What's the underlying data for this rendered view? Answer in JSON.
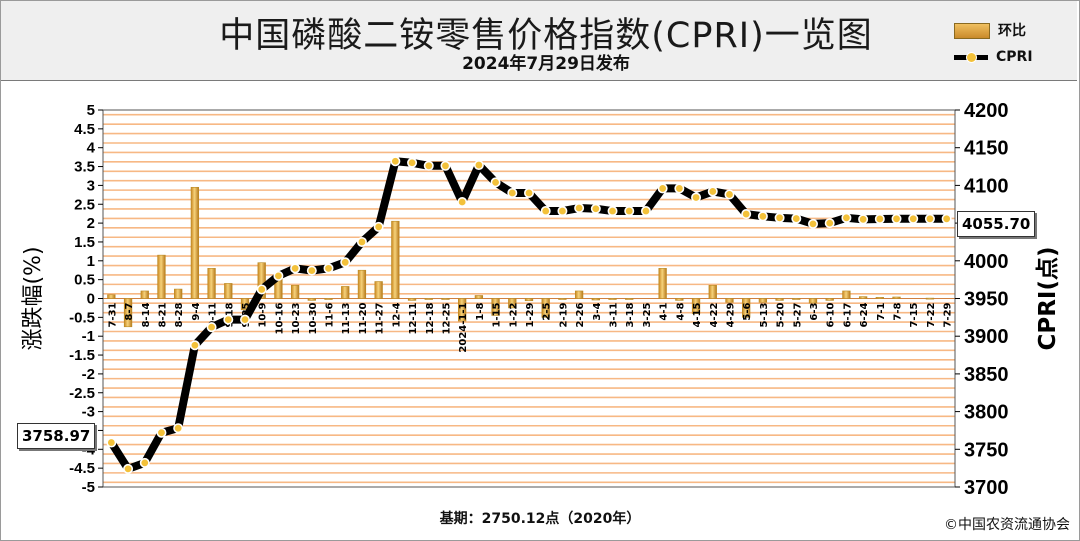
{
  "title": "中国磷酸二铵零售价格指数(CPRI)一览图",
  "subtitle": "2024年7月29日发布",
  "legend": [
    {
      "label": "环比",
      "icon": "bar-swatch-icon"
    },
    {
      "label": "CPRI",
      "icon": "line-marker-icon"
    }
  ],
  "footer": {
    "base": "基期：2750.12点（2020年）",
    "copyright": "©中国农资流通协会"
  },
  "colors": {
    "header_bg": "#efefef",
    "stripe": "#f7b884",
    "bar": "#d9a441",
    "bar_edge": "#b98a25",
    "line": "#000000",
    "marker": "#f3c13a"
  },
  "chart_data": {
    "type": "bar",
    "title": "中国磷酸二铵零售价格指数(CPRI)一览图",
    "subtitle": "2024年7月29日发布",
    "ylabel_left": "涨跌幅(%)",
    "ylabel_right": "CPRI(点)",
    "ylim_left": [
      -5,
      5
    ],
    "ylim_right": [
      3700,
      4200
    ],
    "yticks_left": [
      "5",
      "4.5",
      "4",
      "3.5",
      "3",
      "2.5",
      "2",
      "1.5",
      "1",
      "0.5",
      "0",
      "-0.5",
      "-1",
      "-1.5",
      "-2",
      "-2.5",
      "-3",
      "-3.5",
      "-4",
      "-4.5",
      "-5"
    ],
    "yticks_right": [
      "4200",
      "4150",
      "4100",
      "4050",
      "4000",
      "3950",
      "3900",
      "3850",
      "3800",
      "3750",
      "3700"
    ],
    "grid": true,
    "legend_position": "top-right",
    "categories": [
      "7-31",
      "8-7",
      "8-14",
      "8-21",
      "8-28",
      "9-4",
      "9-11",
      "9-18",
      "9-25",
      "10-9",
      "10-16",
      "10-23",
      "10-30",
      "11-6",
      "11-13",
      "11-20",
      "11-27",
      "12-4",
      "12-11",
      "12-18",
      "12-25",
      "2024-1-1",
      "1-8",
      "1-15",
      "1-22",
      "1-29",
      "2-5",
      "2-19",
      "2-26",
      "3-4",
      "3-11",
      "3-18",
      "3-25",
      "4-1",
      "4-8",
      "4-15",
      "4-22",
      "4-29",
      "5-6",
      "5-13",
      "5-20",
      "5-27",
      "6-3",
      "6-10",
      "6-17",
      "6-24",
      "7-1",
      "7-8",
      "7-15",
      "7-22",
      "7-29"
    ],
    "series": [
      {
        "name": "环比",
        "type": "bar",
        "axis": "left",
        "values": [
          0.1,
          -0.75,
          0.2,
          1.15,
          0.25,
          2.95,
          0.8,
          0.4,
          -0.3,
          0.95,
          0.6,
          0.35,
          -0.05,
          -0.02,
          0.32,
          0.75,
          0.45,
          2.05,
          -0.05,
          -0.02,
          -0.01,
          -0.6,
          0.08,
          -0.45,
          -0.25,
          -0.06,
          -0.5,
          -0.02,
          0.2,
          -0.04,
          -0.01,
          -0.02,
          0.0,
          0.8,
          -0.05,
          -0.4,
          0.35,
          -0.1,
          -0.5,
          -0.1,
          -0.05,
          -0.02,
          -0.12,
          -0.05,
          0.2,
          0.05,
          0.03,
          0.04,
          0.0,
          0.01,
          0.0
        ]
      },
      {
        "name": "CPRI",
        "type": "line",
        "axis": "right",
        "values": [
          3758.97,
          3724,
          3732,
          3772,
          3778,
          3888,
          3912,
          3922,
          3922,
          3962,
          3980,
          3990,
          3987,
          3990,
          3998,
          4025,
          4045,
          4132,
          4130,
          4126,
          4126,
          4078,
          4127,
          4104,
          4090,
          4090,
          4066,
          4066,
          4070,
          4069,
          4066,
          4066,
          4066,
          4096,
          4096,
          4084,
          4092,
          4088,
          4062,
          4059,
          4057,
          4056,
          4049,
          4050,
          4057,
          4055,
          4055.5,
          4055.7,
          4055.7,
          4055.7,
          4055.7
        ]
      }
    ],
    "annotations": [
      {
        "label": "3758.97"
      },
      {
        "label": "4055.70"
      }
    ]
  }
}
